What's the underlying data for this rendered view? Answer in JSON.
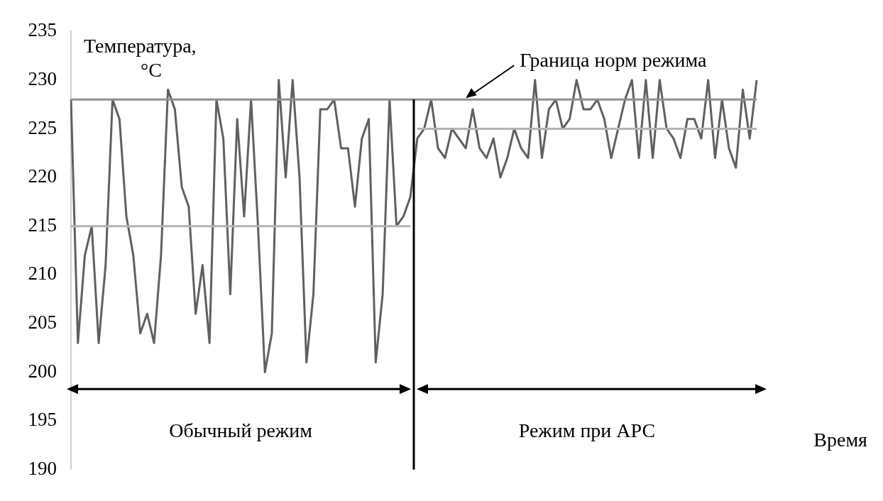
{
  "chart_data": {
    "type": "line",
    "ylabel": "Температура, °C",
    "categories": [
      null,
      null,
      null,
      null,
      null,
      null,
      null,
      null,
      null,
      null,
      null,
      null,
      null,
      null,
      null,
      null,
      null,
      null,
      null,
      null,
      null,
      null,
      null,
      null,
      null,
      null,
      null,
      null,
      null,
      null,
      null,
      null,
      null,
      null,
      null,
      null,
      null,
      null,
      null,
      null,
      null,
      null,
      null,
      null,
      null,
      null,
      null,
      null,
      null,
      null,
      null,
      null,
      null,
      null,
      null,
      null,
      null,
      null,
      null,
      null,
      null,
      null,
      null,
      null,
      null,
      null,
      null,
      null,
      null,
      null,
      null,
      null,
      null,
      null,
      null,
      null,
      null,
      null,
      null,
      null,
      null,
      null,
      null,
      null,
      null,
      null,
      null,
      null,
      null,
      null,
      null,
      null,
      null,
      null,
      null,
      null,
      null,
      null,
      null,
      null
    ],
    "series": [
      {
        "color": "#606060",
        "values": [
          228,
          203,
          212,
          215,
          203,
          211,
          228,
          226,
          216,
          212,
          204,
          206,
          203,
          212,
          229,
          227,
          219,
          217,
          206,
          211,
          203,
          228,
          224,
          208,
          226,
          216,
          228,
          215,
          200,
          204,
          230,
          220,
          230,
          220,
          201,
          208,
          227,
          227,
          228,
          223,
          223,
          217,
          224,
          226,
          201,
          208,
          228,
          215,
          216,
          218,
          224,
          225,
          228,
          223,
          222,
          225,
          224,
          223,
          227,
          223,
          222,
          224,
          220,
          222,
          225,
          223,
          222,
          230,
          222,
          227,
          228,
          225,
          226,
          230,
          227,
          227,
          228,
          226,
          222,
          225,
          228,
          230,
          222,
          230,
          222,
          230,
          225,
          224,
          222,
          226,
          226,
          224,
          230,
          222,
          228,
          223,
          221,
          229,
          224,
          230
        ]
      },
      {
        "color": "#909090",
        "values": [
          228,
          228,
          228,
          228,
          228,
          228,
          228,
          228,
          228,
          228,
          228,
          228,
          228,
          228,
          228,
          228,
          228,
          228,
          228,
          228,
          228,
          228,
          228,
          228,
          228,
          228,
          228,
          228,
          228,
          228,
          228,
          228,
          228,
          228,
          228,
          228,
          228,
          228,
          228,
          228,
          228,
          228,
          228,
          228,
          228,
          228,
          228,
          228,
          228,
          228,
          228,
          228,
          228,
          228,
          228,
          228,
          228,
          228,
          228,
          228,
          228,
          228,
          228,
          228,
          228,
          228,
          228,
          228,
          228,
          228,
          228,
          228,
          228,
          228,
          228,
          228,
          228,
          228,
          228,
          228,
          228,
          228,
          228,
          228,
          228,
          228,
          228,
          228,
          228,
          228,
          228,
          228,
          228,
          228,
          228,
          228,
          228,
          228,
          228,
          228
        ]
      },
      {
        "color": "#b4b4b4",
        "values": [
          215,
          215,
          215,
          215,
          215,
          215,
          215,
          215,
          215,
          215,
          215,
          215,
          215,
          215,
          215,
          215,
          215,
          215,
          215,
          215,
          215,
          215,
          215,
          215,
          215,
          215,
          215,
          215,
          215,
          215,
          215,
          215,
          215,
          215,
          215,
          215,
          215,
          215,
          215,
          215,
          215,
          215,
          215,
          215,
          215,
          215,
          215,
          215,
          215,
          215,
          null,
          null,
          null,
          null,
          null,
          null,
          null,
          null,
          null,
          null,
          null,
          null,
          null,
          null,
          null,
          null,
          null,
          null,
          null,
          null,
          null,
          null,
          null,
          null,
          null,
          null,
          null,
          null,
          null,
          null,
          null,
          null,
          null,
          null,
          null,
          null,
          null,
          null,
          null,
          null,
          null,
          null,
          null,
          null,
          null,
          null,
          null,
          null,
          null,
          null
        ]
      },
      {
        "color": "#b4b4b4",
        "values": [
          null,
          null,
          null,
          null,
          null,
          null,
          null,
          null,
          null,
          null,
          null,
          null,
          null,
          null,
          null,
          null,
          null,
          null,
          null,
          null,
          null,
          null,
          null,
          null,
          null,
          null,
          null,
          null,
          null,
          null,
          null,
          null,
          null,
          null,
          null,
          null,
          null,
          null,
          null,
          null,
          null,
          null,
          null,
          null,
          null,
          null,
          null,
          null,
          null,
          null,
          225,
          225,
          225,
          225,
          225,
          225,
          225,
          225,
          225,
          225,
          225,
          225,
          225,
          225,
          225,
          225,
          225,
          225,
          225,
          225,
          225,
          225,
          225,
          225,
          225,
          225,
          225,
          225,
          225,
          225,
          225,
          225,
          225,
          225,
          225,
          225,
          225,
          225,
          225,
          225,
          225,
          225,
          225,
          225,
          225,
          225,
          225,
          225,
          225,
          225
        ]
      }
    ],
    "ylim": [
      190,
      235
    ],
    "yticks": [
      190,
      195,
      200,
      205,
      210,
      215,
      220,
      225,
      230,
      235
    ],
    "tick_labels": "y",
    "grid": false,
    "legend": false,
    "marker": "none",
    "line_style": "solid",
    "annotations": [
      "Обычный режим",
      "Режим при АРС",
      {
        "text": "Граница норм режима",
        "y": 228
      },
      "Время"
    ]
  }
}
